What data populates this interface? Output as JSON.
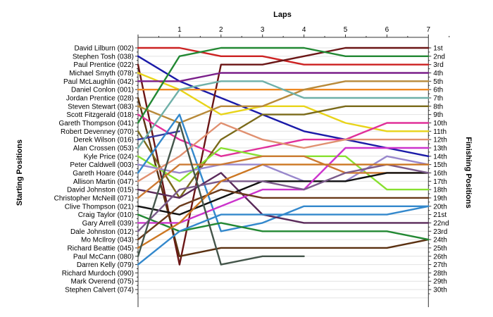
{
  "chart_data": {
    "type": "line",
    "title": "Laps",
    "ylabel_left": "Starting Positions",
    "ylabel_right": "Finishing Positions",
    "x_ticks": [
      "1",
      "2",
      "3",
      "4",
      "5",
      "6",
      "7"
    ],
    "xlim": [
      0,
      7
    ],
    "ylim": [
      1,
      30
    ],
    "grid": true,
    "starting_positions": [
      "David Lilburn (002)",
      "Stephen Tosh (038)",
      "Paul Prentice (022)",
      "Michael Smyth (078)",
      "Paul McLaughlin (042)",
      "Daniel Conlon (001)",
      "Jordan Prentice (028)",
      "Steven Stewart (083)",
      "Scott Fitzgerald (018)",
      "Gareth Thompson (041)",
      "Robert Devenney (070)",
      "Derek Wilson (016)",
      "Alan Crossen (053)",
      "Kyle Price (024)",
      "Peter Caldwell (003)",
      "Gareth Hoare (044)",
      "Allison Martin (047)",
      "David Johnston (015)",
      "Christopher McNeill (071)",
      "Clive Thompson (021)",
      "Craig Taylor (010)",
      "Gary Arrell (039)",
      "Dale Johnston (012)",
      "Mo McIlroy (043)",
      "Richard Beattie (045)",
      "Paul McCann (080)",
      "Darren Kelly (079)",
      "Richard Murdoch (090)",
      "Mark Overend (075)",
      "Stephen Calvert (074)"
    ],
    "finishing_positions": [
      "1st",
      "2nd",
      "3rd",
      "4th",
      "5th",
      "6th",
      "7th",
      "8th",
      "9th",
      "10th",
      "11th",
      "12th",
      "13th",
      "14th",
      "15th",
      "16th",
      "17th",
      "18th",
      "19th",
      "20th",
      "21st",
      "22nd",
      "23rd",
      "24th",
      "25th",
      "26th",
      "27th",
      "28th",
      "29th",
      "30th"
    ],
    "series": [
      {
        "color": "#cc2222",
        "positions": [
          1,
          1,
          2,
          2,
          3,
          3,
          3,
          3
        ]
      },
      {
        "color": "#1a1aa8",
        "positions": [
          2,
          5,
          7,
          9,
          11,
          12,
          13,
          14
        ]
      },
      {
        "color": "#6b1616",
        "positions": [
          3,
          27,
          3,
          3,
          2,
          1,
          1,
          1
        ]
      },
      {
        "color": "#e8d41a",
        "positions": [
          4,
          6,
          9,
          8,
          8,
          10,
          11,
          11
        ]
      },
      {
        "color": "#7a1f8a",
        "positions": [
          5,
          5,
          4,
          4,
          4,
          4,
          4,
          4
        ]
      },
      {
        "color": "#ee8822",
        "positions": [
          6,
          6,
          6,
          6,
          6,
          6,
          6,
          6
        ]
      },
      {
        "color": "#5a3010",
        "positions": [
          7,
          26,
          25,
          25,
          25,
          25,
          25,
          24
        ]
      },
      {
        "color": "#b88a3a",
        "positions": [
          8,
          10,
          8,
          8,
          6,
          5,
          5,
          5
        ]
      },
      {
        "color": "#e0309a",
        "positions": [
          9,
          12,
          14,
          13,
          12,
          12,
          10,
          10
        ]
      },
      {
        "color": "#228833",
        "positions": [
          10,
          2,
          1,
          1,
          1,
          2,
          2,
          2
        ]
      },
      {
        "color": "#7a6a1a",
        "positions": [
          11,
          19,
          12,
          9,
          9,
          8,
          8,
          8
        ]
      },
      {
        "color": "#3a3aa0",
        "positions": [
          12,
          11,
          null,
          null,
          null,
          null,
          null,
          null
        ]
      },
      {
        "color": "#6fb0a8",
        "positions": [
          13,
          6,
          5,
          5,
          7,
          7,
          7,
          7
        ]
      },
      {
        "color": "#88e030",
        "positions": [
          14,
          17,
          13,
          14,
          14,
          14,
          18,
          18
        ]
      },
      {
        "color": "#9988cc",
        "positions": [
          15,
          16,
          15,
          15,
          17,
          17,
          14,
          15
        ]
      },
      {
        "color": "#3388cc",
        "positions": [
          16,
          9,
          23,
          22,
          20,
          20,
          20,
          20
        ]
      },
      {
        "color": "#e09070",
        "positions": [
          17,
          14,
          10,
          12,
          13,
          12,
          12,
          12
        ]
      },
      {
        "color": "#5a2a5a",
        "positions": [
          18,
          19,
          16,
          21,
          22,
          22,
          22,
          22
        ]
      },
      {
        "color": "#cc7a33",
        "positions": [
          19,
          15,
          15,
          14,
          14,
          16,
          16,
          16
        ]
      },
      {
        "color": "#111111",
        "positions": [
          20,
          21,
          19,
          17,
          17,
          17,
          16,
          16
        ]
      },
      {
        "color": "#228833",
        "positions": [
          21,
          23,
          22,
          23,
          23,
          23,
          23,
          24
        ]
      },
      {
        "color": "#cc33cc",
        "positions": [
          22,
          22,
          20,
          18,
          18,
          13,
          13,
          13
        ]
      },
      {
        "color": "#7a5a8a",
        "positions": [
          23,
          18,
          17,
          17,
          18,
          16,
          15,
          16
        ]
      },
      {
        "color": "#6a3a1a",
        "positions": [
          24,
          20,
          18,
          19,
          19,
          19,
          19,
          19
        ]
      },
      {
        "color": "#cc7722",
        "positions": [
          25,
          22,
          17,
          15,
          15,
          15,
          15,
          15
        ]
      },
      {
        "color": "#44554a",
        "positions": [
          26,
          10,
          27,
          26,
          26,
          null,
          null,
          null
        ]
      },
      {
        "color": "#3388cc",
        "positions": [
          27,
          23,
          21,
          21,
          21,
          21,
          21,
          20
        ]
      }
    ]
  }
}
